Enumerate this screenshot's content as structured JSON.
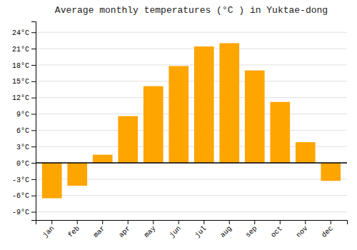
{
  "chart_data": {
    "type": "bar",
    "title": "Average monthly temperatures (°C ) in Yuktae-dong",
    "categories": [
      "jan",
      "feb",
      "mar",
      "apr",
      "may",
      "jun",
      "jul",
      "aug",
      "sep",
      "oct",
      "nov",
      "dec"
    ],
    "values": [
      -6.5,
      -4.2,
      1.5,
      8.6,
      14.1,
      17.8,
      21.4,
      22.0,
      17.0,
      11.2,
      3.8,
      -3.3
    ],
    "color": "#FFA500",
    "ylim": [
      -10.5,
      26.0
    ],
    "yticks": [
      {
        "value": -9,
        "label": "-9°C"
      },
      {
        "value": -6,
        "label": "-6°C"
      },
      {
        "value": -3,
        "label": "-3°C"
      },
      {
        "value": 0,
        "label": "0°C"
      },
      {
        "value": 3,
        "label": "3°C"
      },
      {
        "value": 6,
        "label": "6°C"
      },
      {
        "value": 9,
        "label": "9°C"
      },
      {
        "value": 12,
        "label": "12°C"
      },
      {
        "value": 15,
        "label": "15°C"
      },
      {
        "value": 18,
        "label": "18°C"
      },
      {
        "value": 21,
        "label": "21°C"
      },
      {
        "value": 24,
        "label": "24°C"
      }
    ],
    "grid": true
  }
}
